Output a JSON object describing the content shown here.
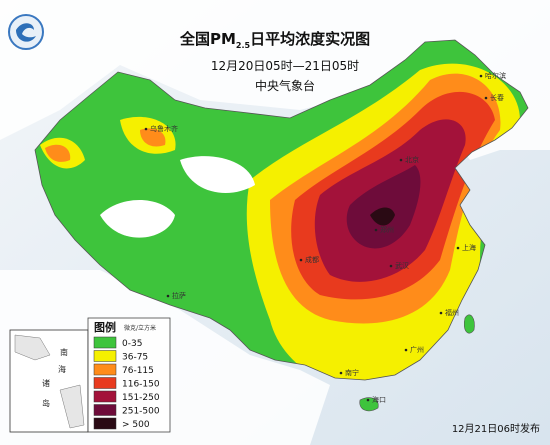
{
  "header": {
    "title": {
      "prefix": "全国PM",
      "subscript": "2.5",
      "suffix": "日平均浓度实况图"
    },
    "subtitle": "12月20日05时—21日05时",
    "agency": "中央气象台"
  },
  "legend": {
    "title": "图例",
    "unit": "微克/立方米",
    "items": [
      {
        "label": "0-35",
        "color": "#3ec43c"
      },
      {
        "label": "36-75",
        "color": "#f5f000"
      },
      {
        "label": "76-115",
        "color": "#ff8c1a"
      },
      {
        "label": "116-150",
        "color": "#e83a1e"
      },
      {
        "label": "151-250",
        "color": "#a3123a"
      },
      {
        "label": "251-500",
        "color": "#6e0c3a"
      },
      {
        "label": "> 500",
        "color": "#2a0a14"
      }
    ]
  },
  "cities": [
    "乌鲁木齐",
    "哈尔滨",
    "长春",
    "北京",
    "拉萨",
    "成都",
    "郑州",
    "武汉",
    "上海",
    "福州",
    "广州",
    "南宁",
    "海口"
  ],
  "inset": {
    "labels": [
      "南",
      "海",
      "诸",
      "岛"
    ]
  },
  "footer": "12月21日06时发布"
}
